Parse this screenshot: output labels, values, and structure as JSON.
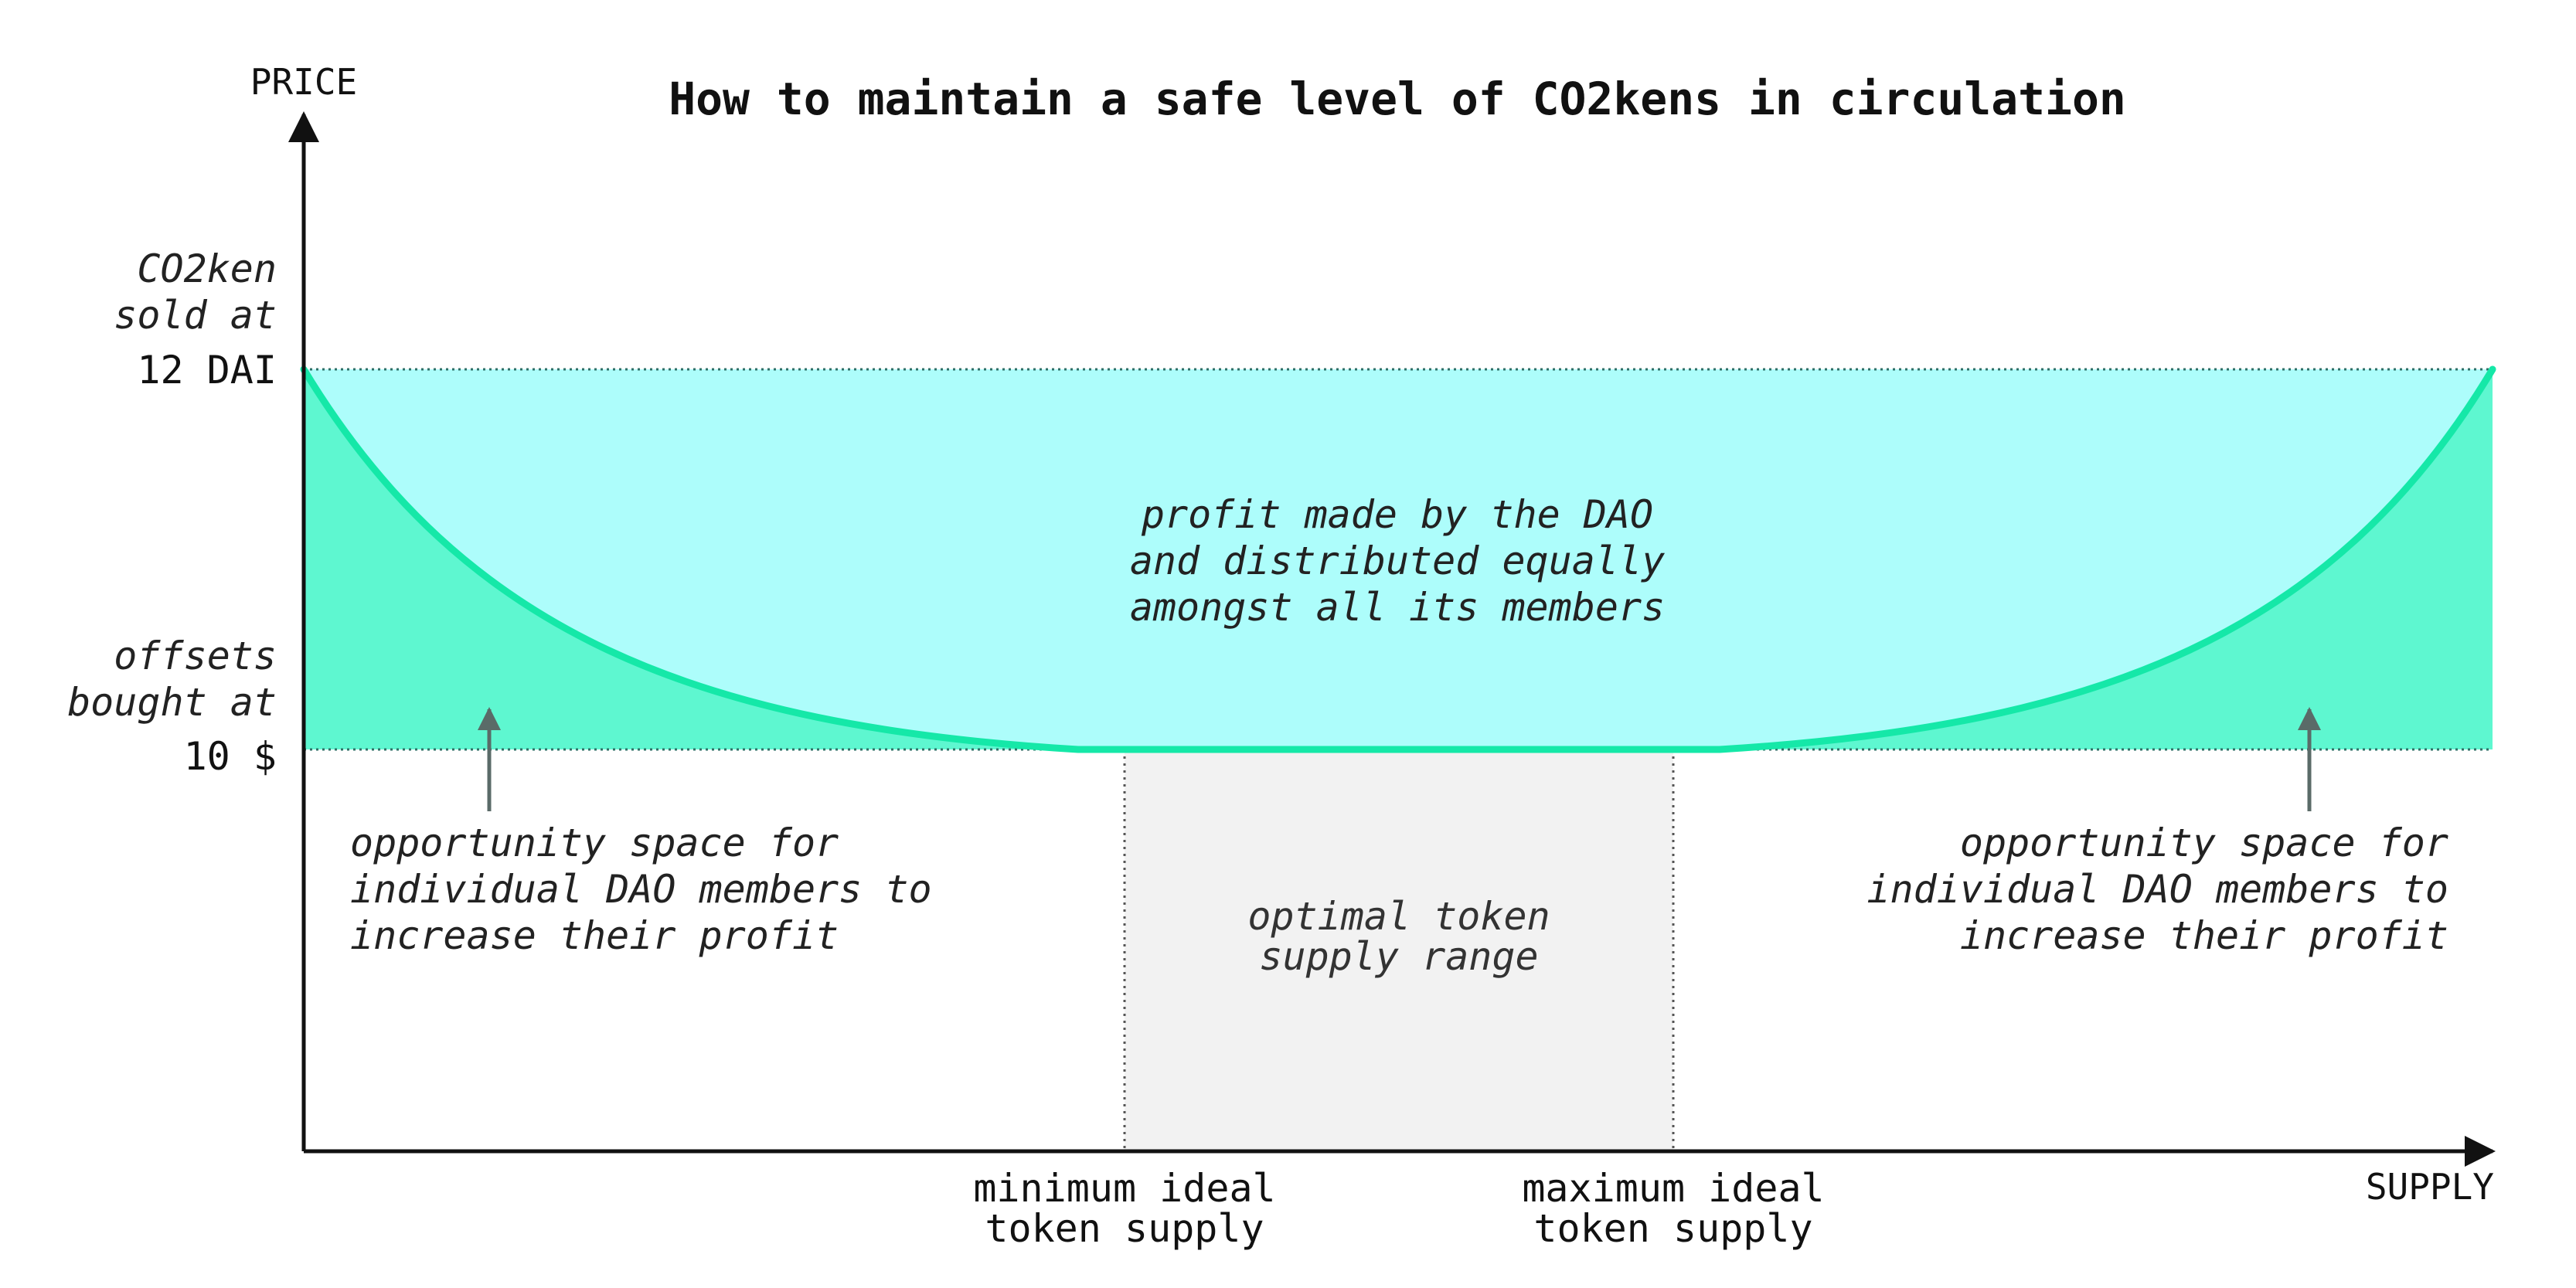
{
  "title": "How to maintain a safe level of CO2kens in circulation",
  "axes": {
    "y_label": "PRICE",
    "x_label": "SUPPLY"
  },
  "price_levels": {
    "upper": {
      "caption_lines": [
        "CO2ken",
        "sold at"
      ],
      "value": "12 DAI"
    },
    "lower": {
      "caption_lines": [
        "offsets",
        "bought at"
      ],
      "value": "10 $"
    }
  },
  "regions": {
    "dao_profit": {
      "lines": [
        "profit made by the DAO",
        "and distributed equally",
        "amongst all its members"
      ]
    },
    "opportunity_left": {
      "lines": [
        "opportunity space for",
        "individual DAO members to",
        "increase their profit"
      ]
    },
    "opportunity_right": {
      "lines": [
        "opportunity space for",
        "individual DAO members to",
        "increase their profit"
      ]
    },
    "optimal_range": {
      "lines": [
        "optimal token",
        "supply range"
      ]
    }
  },
  "supply_markers": {
    "minimum": {
      "lines": [
        "minimum ideal",
        "token supply"
      ]
    },
    "maximum": {
      "lines": [
        "maximum ideal",
        "token supply"
      ]
    }
  },
  "colors": {
    "band_fill": "#adfdfb",
    "opportunity_fill": "#5ef7d0",
    "curve_stroke": "#15e8a8",
    "optimal_fill": "#f2f2f2",
    "axis": "#111111",
    "arrow": "#5a6b68"
  }
}
